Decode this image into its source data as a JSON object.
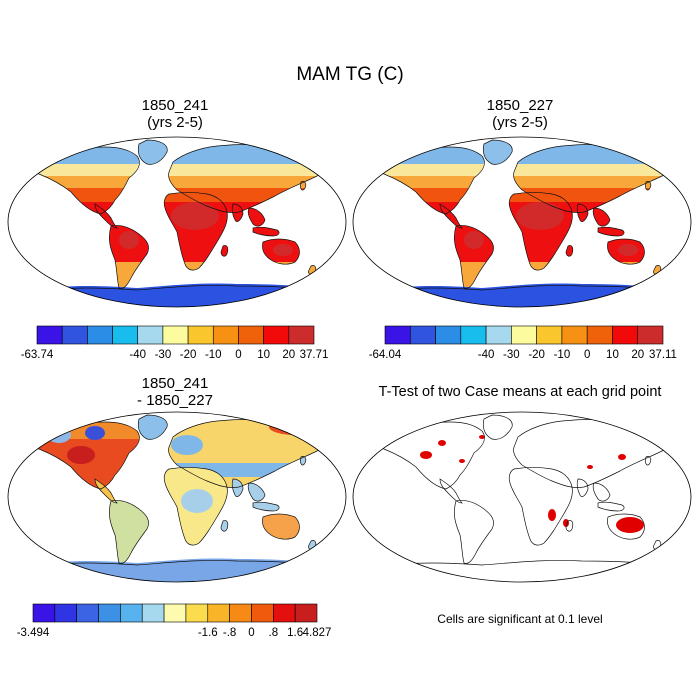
{
  "title": "MAM TG (C)",
  "panels": [
    {
      "title_line1": "1850_241",
      "title_line2": "(yrs 2-5)",
      "colorbar": {
        "colors": [
          "#3a14e6",
          "#3054e0",
          "#2c8de6",
          "#18bdee",
          "#a7d9ee",
          "#fcfb9e",
          "#f9c62e",
          "#f69114",
          "#f0620a",
          "#f20a0a",
          "#cd2c2c"
        ],
        "labels": [
          "-63.74",
          "-40",
          "-30",
          "-20",
          "-10",
          "0",
          "10",
          "20",
          "37.71"
        ]
      },
      "palette": {
        "ocean": "#ffffff",
        "arctic": "#7fb8e8",
        "boreal": "#f9e89c",
        "midlat": "#f8a83a",
        "warm": "#f0540f",
        "tropic": "#ee1010",
        "hot": "#d22a2a",
        "antarctica": "#2b52e0",
        "greenland": "#8cc0ea"
      }
    },
    {
      "title_line1": "1850_227",
      "title_line2": "(yrs 2-5)",
      "colorbar": {
        "colors": [
          "#3a14e6",
          "#3054e0",
          "#2c8de6",
          "#18bdee",
          "#a7d9ee",
          "#fcfb9e",
          "#f9c62e",
          "#f69114",
          "#f0620a",
          "#f20a0a",
          "#cd2c2c"
        ],
        "labels": [
          "-64.04",
          "-40",
          "-30",
          "-20",
          "-10",
          "0",
          "10",
          "20",
          "37.11"
        ]
      },
      "palette": {
        "ocean": "#ffffff",
        "arctic": "#7fb8e8",
        "boreal": "#f9e89c",
        "midlat": "#f8a83a",
        "warm": "#f0540f",
        "tropic": "#ee1010",
        "hot": "#d22a2a",
        "antarctica": "#2b52e0",
        "greenland": "#8cc0ea"
      }
    },
    {
      "title_line1": "1850_241",
      "title_line2": "- 1850_227",
      "colorbar": {
        "colors": [
          "#3a14e6",
          "#3035e4",
          "#3a64e4",
          "#3c90e6",
          "#58b2ee",
          "#a7d9ee",
          "#fcfbb0",
          "#fadc4c",
          "#f9b428",
          "#f68a14",
          "#f05a0c",
          "#e40f0f",
          "#c81e1e"
        ],
        "labels": [
          "-3.494",
          "-1.6",
          "-.8",
          "0",
          ".8",
          "1.6",
          "4.827"
        ]
      },
      "palette": {
        "north_america": "#e84b20",
        "canada": "#f18a2a",
        "alaska": "#8fb8e8",
        "south_america": "#cfe0a0",
        "europe": "#7fb8e8",
        "asia_north": "#f8d56a",
        "asia_south": "#a8cfe9",
        "africa": "#f9e88a",
        "australia": "#f5a24a",
        "antarctica": "#79a6e6",
        "greenland": "#8cc0ea"
      }
    },
    {
      "title": "T-Test of two Case means at each grid point",
      "note": "Cells are significant at 0.1 level",
      "significant_color": "#e00000"
    }
  ]
}
